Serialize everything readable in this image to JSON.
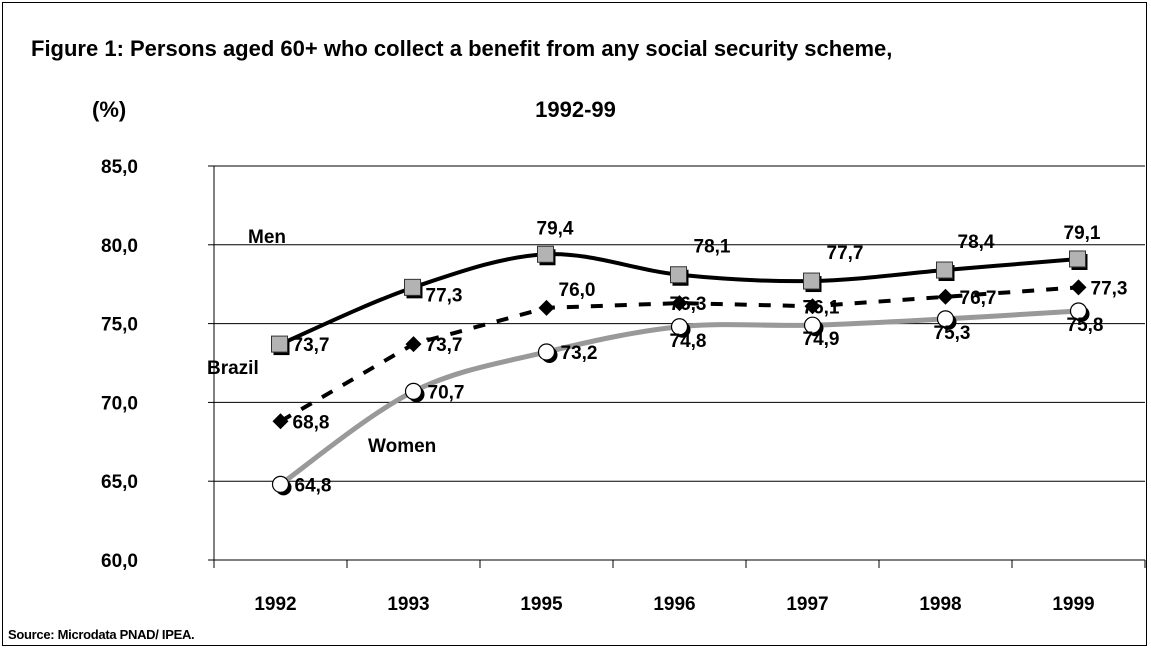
{
  "chart_data": {
    "type": "line",
    "title": "Figure 1: Persons aged 60+ who collect a benefit from any social security scheme,",
    "subtitle": "1992-99",
    "ylabel": "(%)",
    "source": "Source: Microdata PNAD/ IPEA.",
    "categories": [
      "1992",
      "1993",
      "1995",
      "1996",
      "1997",
      "1998",
      "1999"
    ],
    "ylim": [
      60,
      85
    ],
    "yticks": [
      "60,0",
      "65,0",
      "70,0",
      "75,0",
      "80,0",
      "85,0"
    ],
    "ytick_values": [
      60,
      65,
      70,
      75,
      80,
      85
    ],
    "grid": true,
    "series": [
      {
        "name": "Men",
        "values": [
          73.7,
          77.3,
          79.4,
          78.1,
          77.7,
          78.4,
          79.1
        ],
        "labels": [
          "73,7",
          "77,3",
          "79,4",
          "78,1",
          "77,7",
          "78,4",
          "79,1"
        ],
        "color": "#000000",
        "marker": "square",
        "marker_color": "#b3b3b3",
        "line_style": "solid"
      },
      {
        "name": "Brazil",
        "values": [
          68.8,
          73.7,
          76.0,
          76.3,
          76.1,
          76.7,
          77.3
        ],
        "labels": [
          "68,8",
          "73,7",
          "76,0",
          "76,3",
          "76,1",
          "76,7",
          "77,3"
        ],
        "color": "#000000",
        "marker": "diamond",
        "marker_color": "#000000",
        "line_style": "dashed"
      },
      {
        "name": "Women",
        "values": [
          64.8,
          70.7,
          73.2,
          74.8,
          74.9,
          75.3,
          75.8
        ],
        "labels": [
          "64,8",
          "70,7",
          "73,2",
          "74,8",
          "74,9",
          "75,3",
          "75,8"
        ],
        "color": "#999999",
        "marker": "circle",
        "marker_color": "#ffffff",
        "line_style": "solid"
      }
    ]
  }
}
